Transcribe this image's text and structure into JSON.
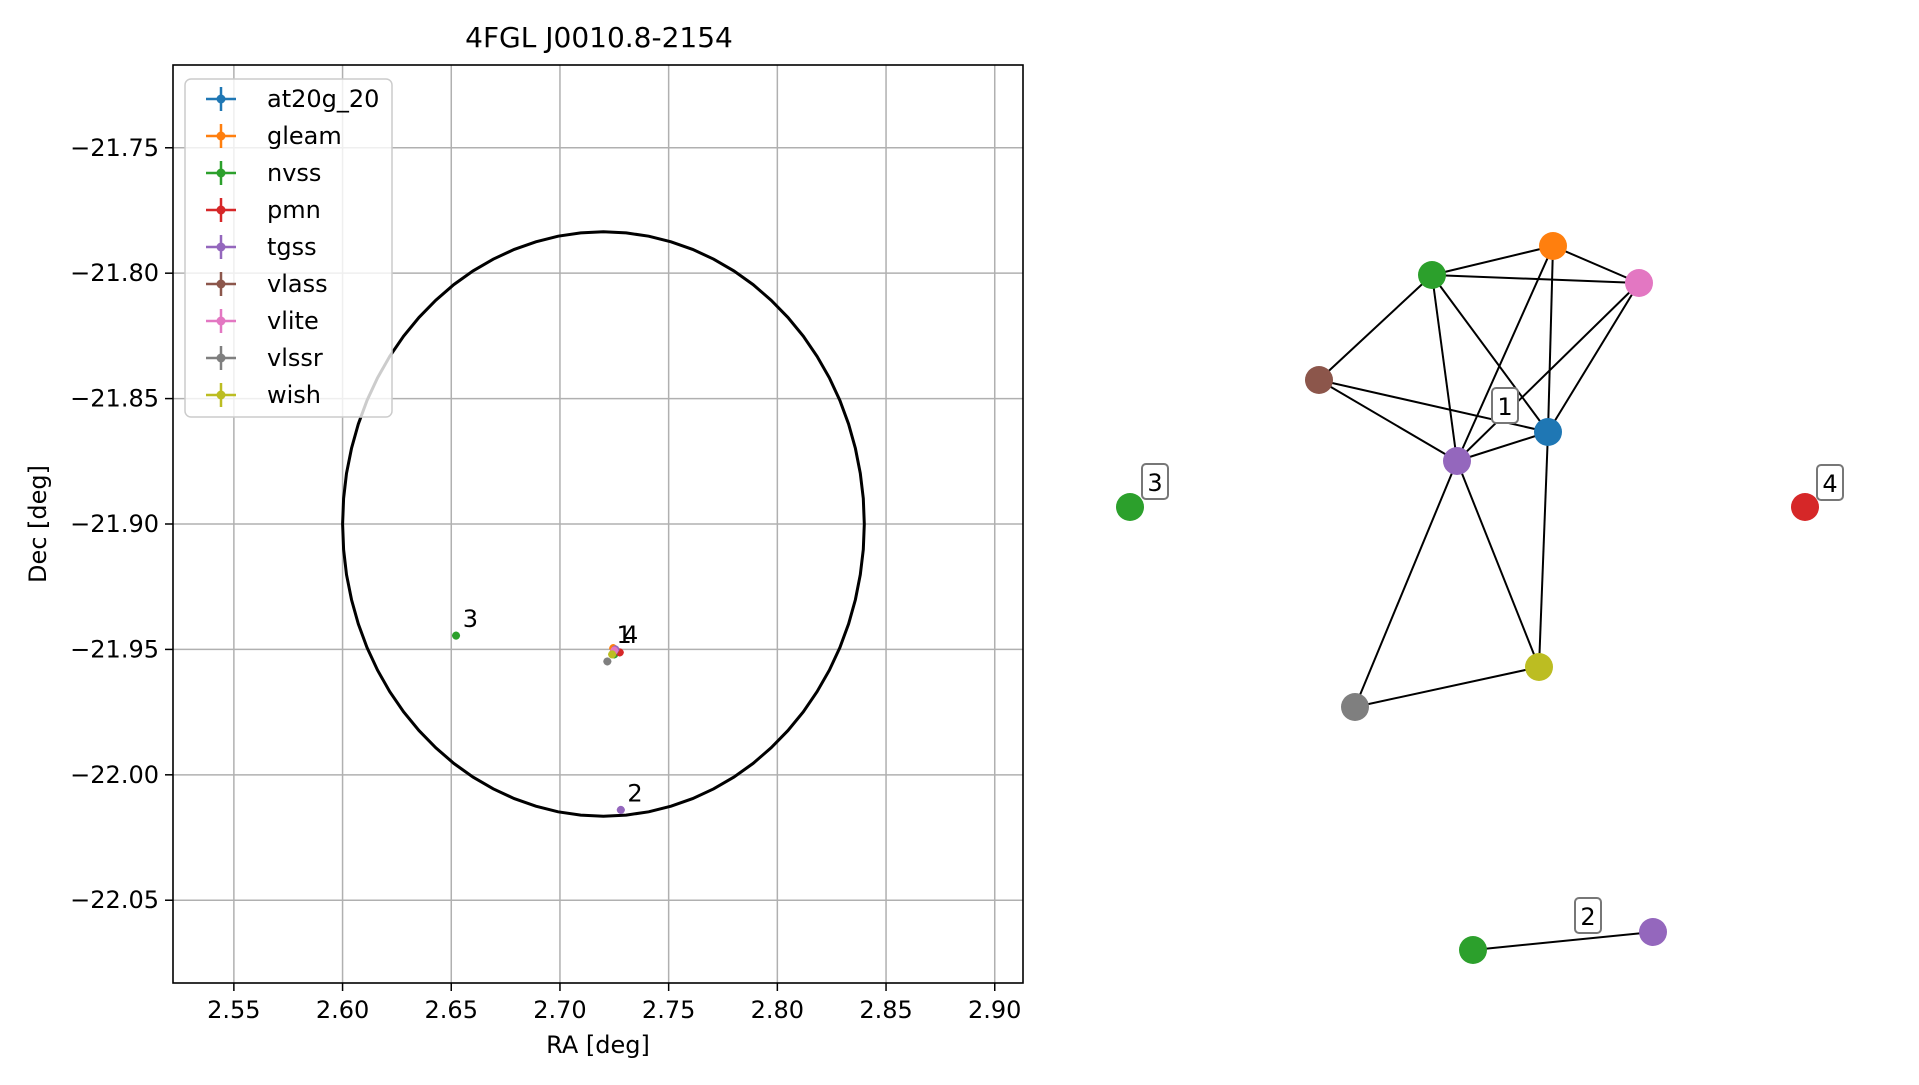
{
  "chart_data": [
    {
      "type": "scatter",
      "title": "4FGL J0010.8-2154",
      "xlabel": "RA [deg]",
      "ylabel": "Dec [deg]",
      "xlim": [
        2.522,
        2.913
      ],
      "ylim": [
        -22.083,
        -21.717
      ],
      "x_ticks": [
        2.55,
        2.6,
        2.65,
        2.7,
        2.75,
        2.8,
        2.85,
        2.9
      ],
      "x_tick_labels": [
        "2.55",
        "2.60",
        "2.65",
        "2.70",
        "2.75",
        "2.80",
        "2.85",
        "2.90"
      ],
      "y_ticks": [
        -21.75,
        -21.8,
        -21.85,
        -21.9,
        -21.95,
        -22.0,
        -22.05
      ],
      "y_tick_labels": [
        "−21.75",
        "−21.80",
        "−21.85",
        "−21.90",
        "−21.95",
        "−22.00",
        "−22.05"
      ],
      "grid": true,
      "legend_position": "top-left",
      "series": [
        {
          "name": "at20g_20",
          "color": "#1f77b4",
          "points": [
            [
              2.7245,
              -21.9515
            ]
          ]
        },
        {
          "name": "gleam",
          "color": "#ff7f0e",
          "points": [
            [
              2.7245,
              -21.9495
            ]
          ]
        },
        {
          "name": "nvss",
          "color": "#2ca02c",
          "points": [
            [
              2.6522,
              -21.9445
            ],
            [
              2.725,
              -21.952
            ]
          ]
        },
        {
          "name": "pmn",
          "color": "#d62728",
          "points": [
            [
              2.7275,
              -21.9512
            ]
          ]
        },
        {
          "name": "tgss",
          "color": "#9467bd",
          "points": [
            [
              2.728,
              -22.014
            ],
            [
              2.7255,
              -21.95
            ]
          ]
        },
        {
          "name": "vlass",
          "color": "#8c564b",
          "points": [
            [
              2.725,
              -21.951
            ]
          ]
        },
        {
          "name": "vlite",
          "color": "#e377c2",
          "points": [
            [
              2.725,
              -21.9505
            ]
          ]
        },
        {
          "name": "vlssr",
          "color": "#7f7f7f",
          "points": [
            [
              2.7218,
              -21.9548
            ]
          ]
        },
        {
          "name": "wish",
          "color": "#bcbd22",
          "points": [
            [
              2.724,
              -21.952
            ]
          ]
        }
      ],
      "ellipse": {
        "center": [
          2.72,
          -21.9
        ],
        "half_width": 0.12,
        "half_height": 0.1165
      },
      "annotations": [
        {
          "text": "1",
          "x": 2.726,
          "y": -21.9475
        },
        {
          "text": "4",
          "x": 2.729,
          "y": -21.9475
        },
        {
          "text": "3",
          "x": 2.6553,
          "y": -21.941
        },
        {
          "text": "2",
          "x": 2.731,
          "y": -22.0107
        }
      ]
    },
    {
      "type": "network",
      "nodes": [
        {
          "id": "at20g_20",
          "color": "#1f77b4"
        },
        {
          "id": "gleam",
          "color": "#ff7f0e"
        },
        {
          "id": "nvss",
          "color": "#2ca02c"
        },
        {
          "id": "vlite",
          "color": "#e377c2"
        },
        {
          "id": "vlass",
          "color": "#8c564b"
        },
        {
          "id": "tgss",
          "color": "#9467bd"
        },
        {
          "id": "wish",
          "color": "#bcbd22"
        },
        {
          "id": "vlssr",
          "color": "#7f7f7f"
        },
        {
          "id": "nvss_3",
          "color": "#2ca02c"
        },
        {
          "id": "pmn_4",
          "color": "#d62728"
        },
        {
          "id": "nvss_2",
          "color": "#2ca02c"
        },
        {
          "id": "tgss_2",
          "color": "#9467bd"
        }
      ],
      "edges": [
        [
          "nvss",
          "gleam"
        ],
        [
          "nvss",
          "vlite"
        ],
        [
          "nvss",
          "vlass"
        ],
        [
          "nvss",
          "tgss"
        ],
        [
          "nvss",
          "at20g_20"
        ],
        [
          "gleam",
          "vlite"
        ],
        [
          "gleam",
          "at20g_20"
        ],
        [
          "gleam",
          "tgss"
        ],
        [
          "vlite",
          "at20g_20"
        ],
        [
          "vlite",
          "tgss"
        ],
        [
          "vlass",
          "tgss"
        ],
        [
          "vlass",
          "at20g_20"
        ],
        [
          "tgss",
          "at20g_20"
        ],
        [
          "tgss",
          "wish"
        ],
        [
          "tgss",
          "vlssr"
        ],
        [
          "at20g_20",
          "wish"
        ],
        [
          "vlssr",
          "wish"
        ],
        [
          "nvss_2",
          "tgss_2"
        ]
      ],
      "labels": [
        "1",
        "2",
        "3",
        "4"
      ]
    }
  ]
}
